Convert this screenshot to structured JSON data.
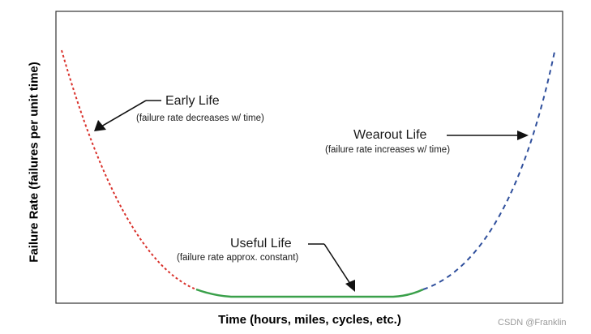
{
  "axes": {
    "x_label": "Time (hours, miles, cycles, etc.)",
    "y_label": "Failure Rate (failures per unit time)"
  },
  "annotations": {
    "early": {
      "title": "Early Life",
      "subtitle": "(failure rate decreases w/ time)"
    },
    "wearout": {
      "title": "Wearout Life",
      "subtitle": "(failure rate increases w/ time)"
    },
    "useful": {
      "title": "Useful Life",
      "subtitle": "(failure rate approx. constant)"
    }
  },
  "colors": {
    "early": "#d9322c",
    "useful": "#3aa04a",
    "wearout": "#2f4f9c",
    "axis": "#333333",
    "arrow": "#111111"
  },
  "watermark": "CSDN @Franklin"
}
